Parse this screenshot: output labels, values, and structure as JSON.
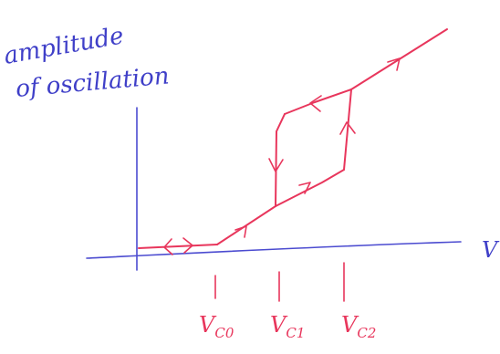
{
  "ylabel_line1": "amplitude",
  "ylabel_line2": "of oscillation",
  "xlabel": "V",
  "ticks": [
    {
      "base": "V",
      "sub": "C0"
    },
    {
      "base": "V",
      "sub": "C1"
    },
    {
      "base": "V",
      "sub": "C2"
    }
  ],
  "colors": {
    "axis": "#4b4bd0",
    "curve": "#e8365c"
  }
}
